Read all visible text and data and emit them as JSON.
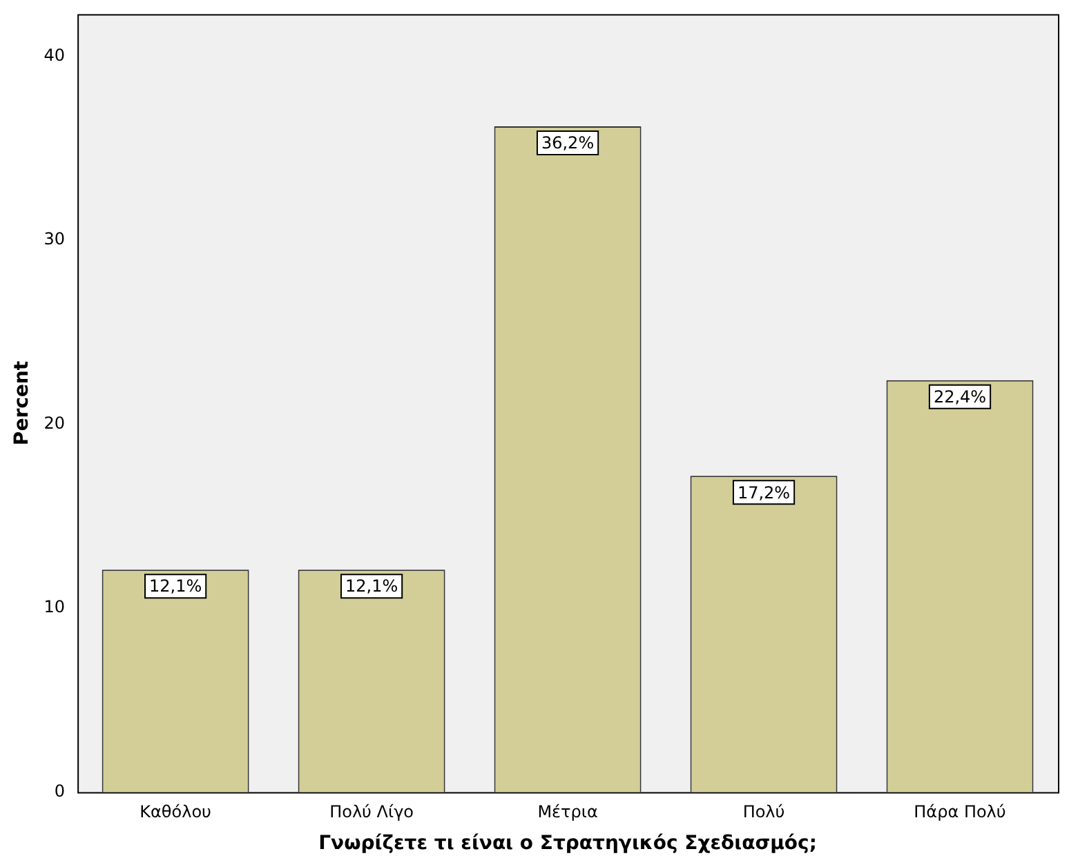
{
  "chart_data": {
    "type": "bar",
    "xlabel": "Γνωρίζετε τι είναι ο Στρατηγικός Σχεδιασμός;",
    "ylabel": "Percent",
    "categories": [
      "Καθόλου",
      "Πολύ Λίγο",
      "Μέτρια",
      "Πολύ",
      "Πάρα Πολύ"
    ],
    "values": [
      12.1,
      12.1,
      36.2,
      17.2,
      22.4
    ],
    "value_labels": [
      "12,1%",
      "12,1%",
      "36,2%",
      "17,2%",
      "22,4%"
    ],
    "color": "#d3ce97",
    "ylim": [
      0,
      42.3
    ],
    "yticks": [
      0,
      10,
      20,
      30,
      40
    ],
    "grid": false,
    "legend": false
  }
}
